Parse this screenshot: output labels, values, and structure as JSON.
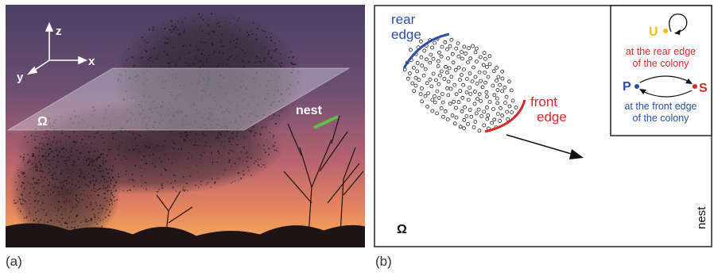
{
  "panel_a": {
    "label": "(a)",
    "axes": {
      "z": "z",
      "x": "x",
      "y": "y"
    },
    "plane_label": "Ω",
    "nest_label": "nest"
  },
  "panel_b": {
    "label": "(b)",
    "rear_edge_label": [
      "rear",
      "edge"
    ],
    "front_edge_label": [
      "front",
      "edge"
    ],
    "plane_label": "Ω",
    "nest_label": "nest",
    "legend": {
      "u_label": "U",
      "u_caption": [
        "at the rear edge",
        "of the colony"
      ],
      "p_label": "P",
      "s_label": "S",
      "ps_caption": [
        "at the front edge",
        "of the colony"
      ]
    }
  },
  "colors": {
    "rear_edge": "#2d4fa3",
    "front_edge": "#d42a2a",
    "u_state": "#f0c000",
    "p_state": "#2d4fa3",
    "s_state": "#d42a2a",
    "nest_marker": "#5cc04a"
  }
}
